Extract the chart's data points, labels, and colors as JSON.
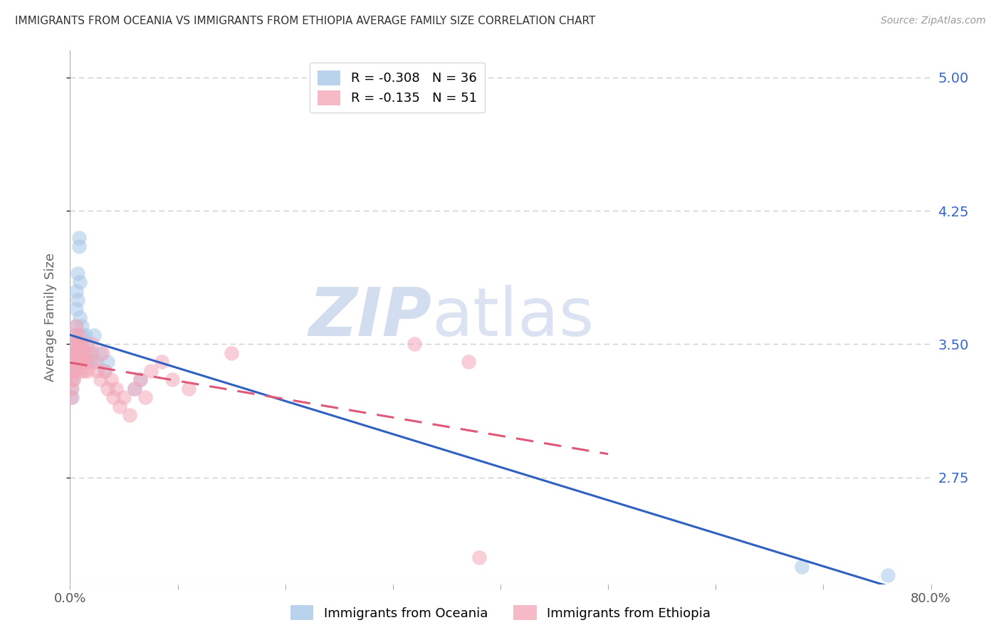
{
  "title": "IMMIGRANTS FROM OCEANIA VS IMMIGRANTS FROM ETHIOPIA AVERAGE FAMILY SIZE CORRELATION CHART",
  "source": "Source: ZipAtlas.com",
  "ylabel": "Average Family Size",
  "yticks": [
    2.75,
    3.5,
    4.25,
    5.0
  ],
  "ymin": 2.15,
  "ymax": 5.15,
  "xmin": 0.0,
  "xmax": 0.8,
  "watermark_zip": "ZIP",
  "watermark_atlas": "atlas",
  "legend_top": [
    {
      "label": "R = -0.308   N = 36",
      "color": "#a8c8e8"
    },
    {
      "label": "R = -0.135   N = 51",
      "color": "#f4a8b8"
    }
  ],
  "legend_bottom": [
    {
      "label": "Immigrants from Oceania",
      "color": "#a8c8e8"
    },
    {
      "label": "Immigrants from Ethiopia",
      "color": "#f4a8b8"
    }
  ],
  "oceania_x": [
    0.001,
    0.001,
    0.002,
    0.002,
    0.003,
    0.003,
    0.004,
    0.004,
    0.005,
    0.005,
    0.006,
    0.006,
    0.007,
    0.007,
    0.008,
    0.008,
    0.009,
    0.009,
    0.01,
    0.01,
    0.011,
    0.012,
    0.013,
    0.014,
    0.016,
    0.018,
    0.02,
    0.022,
    0.025,
    0.028,
    0.032,
    0.035,
    0.06,
    0.065,
    0.68,
    0.76
  ],
  "oceania_y": [
    3.25,
    3.35,
    3.2,
    3.4,
    3.3,
    3.5,
    3.45,
    3.35,
    3.55,
    3.6,
    3.7,
    3.8,
    3.75,
    3.9,
    4.05,
    4.1,
    3.85,
    3.65,
    3.5,
    3.55,
    3.6,
    3.4,
    3.45,
    3.55,
    3.5,
    3.4,
    3.45,
    3.55,
    3.4,
    3.45,
    3.35,
    3.4,
    3.25,
    3.3,
    2.25,
    2.2
  ],
  "ethiopia_x": [
    0.001,
    0.001,
    0.002,
    0.002,
    0.003,
    0.003,
    0.004,
    0.004,
    0.005,
    0.005,
    0.006,
    0.006,
    0.007,
    0.007,
    0.008,
    0.008,
    0.009,
    0.009,
    0.01,
    0.01,
    0.011,
    0.012,
    0.013,
    0.014,
    0.015,
    0.016,
    0.018,
    0.02,
    0.022,
    0.025,
    0.028,
    0.03,
    0.032,
    0.035,
    0.038,
    0.04,
    0.043,
    0.046,
    0.05,
    0.055,
    0.06,
    0.065,
    0.07,
    0.075,
    0.085,
    0.095,
    0.11,
    0.15,
    0.32,
    0.37,
    0.38
  ],
  "ethiopia_y": [
    3.2,
    3.3,
    3.25,
    3.35,
    3.4,
    3.3,
    3.45,
    3.35,
    3.5,
    3.55,
    3.6,
    3.45,
    3.5,
    3.4,
    3.55,
    3.45,
    3.5,
    3.4,
    3.35,
    3.45,
    3.5,
    3.4,
    3.35,
    3.45,
    3.4,
    3.35,
    3.45,
    3.5,
    3.4,
    3.35,
    3.3,
    3.45,
    3.35,
    3.25,
    3.3,
    3.2,
    3.25,
    3.15,
    3.2,
    3.1,
    3.25,
    3.3,
    3.2,
    3.35,
    3.4,
    3.3,
    3.25,
    3.45,
    3.5,
    3.4,
    2.3
  ],
  "oceania_color": "#a8c8e8",
  "ethiopia_color": "#f4a8b8",
  "trendline_blue": "#3060c0",
  "trendline_pink": "#e05878",
  "background_color": "#ffffff",
  "grid_color": "#c8c8d0",
  "title_color": "#333333",
  "axis_label_color": "#666666",
  "right_axis_color": "#3366cc",
  "watermark_color": "#ccd8ee"
}
